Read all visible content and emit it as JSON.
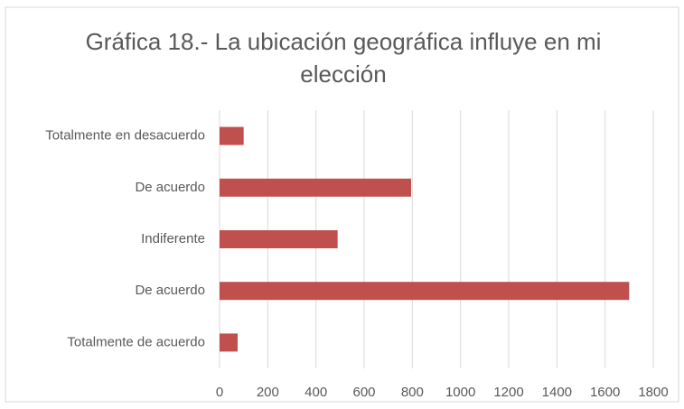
{
  "chart_data": {
    "type": "bar",
    "orientation": "horizontal",
    "title": "Gráfica 18.- La ubicación geográfica influye en mi elección",
    "categories": [
      "Totalmente en desacuerdo",
      "De acuerdo",
      "Indiferente",
      "De acuerdo",
      "Totalmente de acuerdo"
    ],
    "values": [
      100,
      795,
      490,
      1700,
      75
    ],
    "color": "#c0504d",
    "xlim": [
      0,
      1800
    ],
    "xticks": [
      0,
      200,
      400,
      600,
      800,
      1000,
      1200,
      1400,
      1600,
      1800
    ],
    "grid": true
  }
}
